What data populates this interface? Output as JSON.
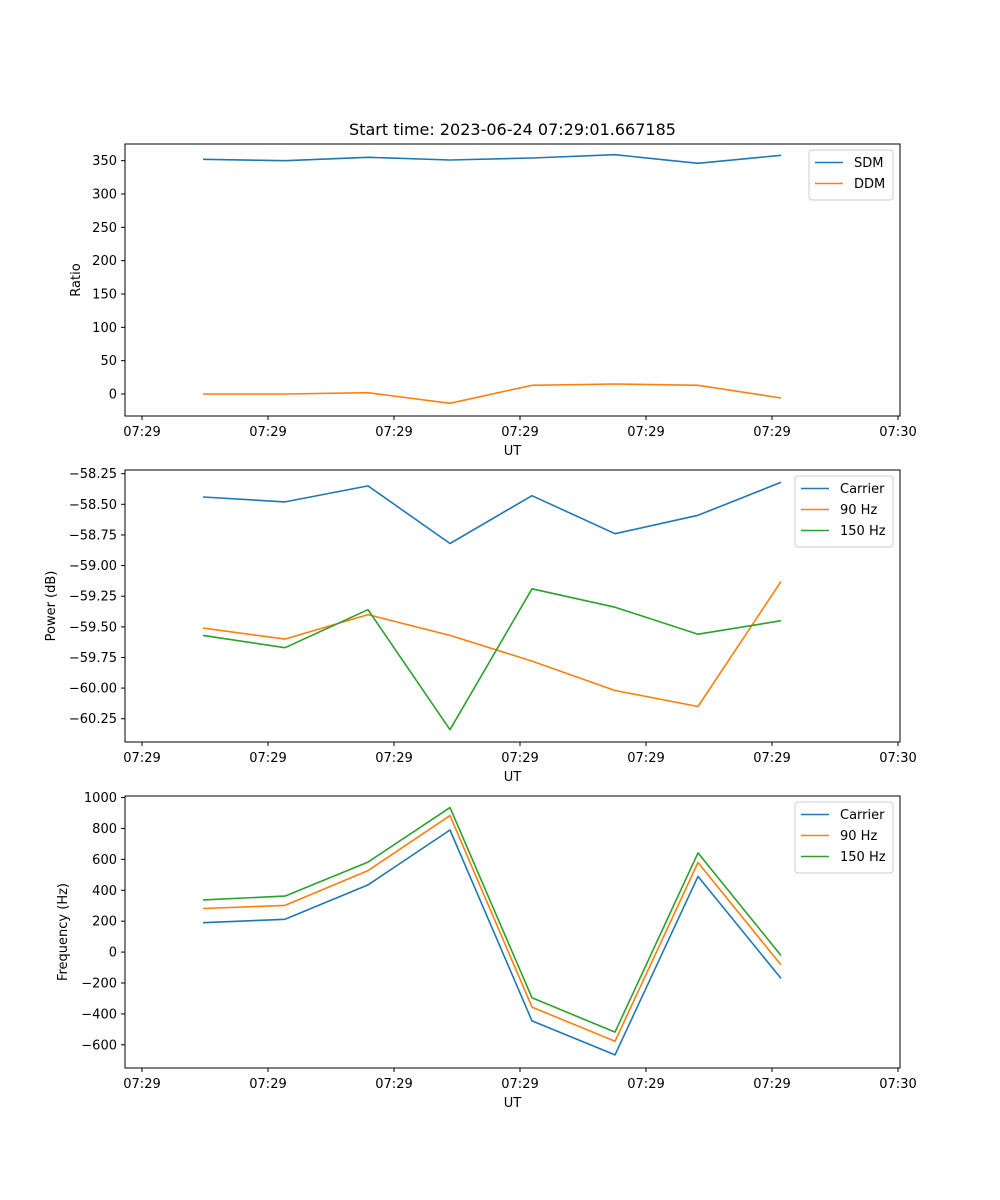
{
  "chart_data": [
    {
      "type": "line",
      "title": "Start time: 2023-06-24 07:29:01.667185",
      "xlabel": "UT",
      "ylabel": "Ratio",
      "x_tick_labels": [
        "07:29",
        "07:29",
        "07:29",
        "07:29",
        "07:29",
        "07:29",
        "07:30"
      ],
      "y_ticks": [
        0,
        50,
        100,
        150,
        200,
        250,
        300,
        350
      ],
      "ylim": [
        -33,
        375
      ],
      "grid": false,
      "legend_position": "upper-right",
      "series": [
        {
          "name": "SDM",
          "color": "#1f77b4",
          "values": [
            352,
            350,
            355,
            351,
            354,
            359,
            346,
            358
          ]
        },
        {
          "name": "DDM",
          "color": "#ff7f0e",
          "values": [
            0,
            0,
            2,
            -14,
            13,
            15,
            13,
            -6
          ]
        }
      ]
    },
    {
      "type": "line",
      "title": "",
      "xlabel": "UT",
      "ylabel": "Power (dB)",
      "x_tick_labels": [
        "07:29",
        "07:29",
        "07:29",
        "07:29",
        "07:29",
        "07:29",
        "07:30"
      ],
      "y_ticks": [
        -60.25,
        -60.0,
        -59.75,
        -59.5,
        -59.25,
        -59.0,
        -58.75,
        -58.5,
        -58.25
      ],
      "y_tick_labels": [
        "−60.25",
        "−60.00",
        "−59.75",
        "−59.50",
        "−59.25",
        "−59.00",
        "−58.75",
        "−58.50",
        "−58.25"
      ],
      "ylim": [
        -60.44,
        -58.22
      ],
      "grid": false,
      "legend_position": "upper-right",
      "series": [
        {
          "name": "Carrier",
          "color": "#1f77b4",
          "values": [
            -58.44,
            -58.48,
            -58.35,
            -58.82,
            -58.43,
            -58.74,
            -58.59,
            -58.32
          ]
        },
        {
          "name": "90 Hz",
          "color": "#ff7f0e",
          "values": [
            -59.51,
            -59.6,
            -59.4,
            -59.57,
            -59.78,
            -60.02,
            -60.15,
            -59.13
          ]
        },
        {
          "name": "150 Hz",
          "color": "#2ca02c",
          "values": [
            -59.57,
            -59.67,
            -59.36,
            -60.34,
            -59.19,
            -59.34,
            -59.56,
            -59.45
          ]
        }
      ]
    },
    {
      "type": "line",
      "title": "",
      "xlabel": "UT",
      "ylabel": "Frequency (Hz)",
      "x_tick_labels": [
        "07:29",
        "07:29",
        "07:29",
        "07:29",
        "07:29",
        "07:29",
        "07:30"
      ],
      "y_ticks": [
        -600,
        -400,
        -200,
        0,
        200,
        400,
        600,
        800,
        1000
      ],
      "y_tick_labels": [
        "−600",
        "−400",
        "−200",
        "0",
        "200",
        "400",
        "600",
        "800",
        "1000"
      ],
      "ylim": [
        -750,
        1010
      ],
      "grid": false,
      "legend_position": "upper-right",
      "series": [
        {
          "name": "Carrier",
          "color": "#1f77b4",
          "values": [
            190,
            212,
            435,
            790,
            -445,
            -665,
            490,
            -170
          ]
        },
        {
          "name": "90 Hz",
          "color": "#ff7f0e",
          "values": [
            282,
            302,
            527,
            883,
            -356,
            -577,
            580,
            -83
          ]
        },
        {
          "name": "150 Hz",
          "color": "#2ca02c",
          "values": [
            338,
            362,
            582,
            935,
            -296,
            -518,
            642,
            -22
          ]
        }
      ]
    }
  ]
}
